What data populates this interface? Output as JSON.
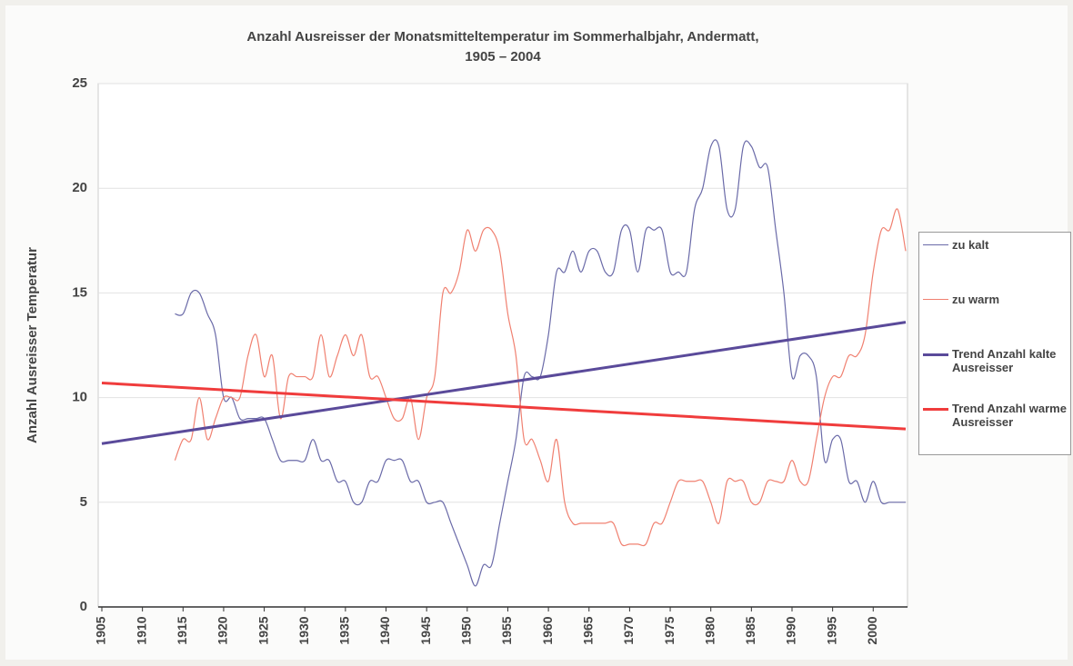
{
  "chart_data": {
    "type": "line",
    "title": "Anzahl Ausreisser der Monatsmitteltemperatur im Sommerhalbjahr, Andermatt,\n1905 – 2004",
    "y_label": "Anzahl Ausreisser Temperatur",
    "x": [
      1914,
      1915,
      1916,
      1917,
      1918,
      1919,
      1920,
      1921,
      1922,
      1923,
      1924,
      1925,
      1926,
      1927,
      1928,
      1929,
      1930,
      1931,
      1932,
      1933,
      1934,
      1935,
      1936,
      1937,
      1938,
      1939,
      1940,
      1941,
      1942,
      1943,
      1944,
      1945,
      1946,
      1947,
      1948,
      1949,
      1950,
      1951,
      1952,
      1953,
      1954,
      1955,
      1956,
      1957,
      1958,
      1959,
      1960,
      1961,
      1962,
      1963,
      1964,
      1965,
      1966,
      1967,
      1968,
      1969,
      1970,
      1971,
      1972,
      1973,
      1974,
      1975,
      1976,
      1977,
      1978,
      1979,
      1980,
      1981,
      1982,
      1983,
      1984,
      1985,
      1986,
      1987,
      1988,
      1989,
      1990,
      1991,
      1992,
      1993,
      1994,
      1995,
      1996,
      1997,
      1998,
      1999,
      2000,
      2001,
      2002,
      2003,
      2004
    ],
    "series": [
      {
        "name": "zu kalt",
        "color": "#6a6aa8",
        "width": 1.2,
        "values": [
          14,
          14,
          15,
          15,
          14,
          13,
          10,
          10,
          9,
          9,
          9,
          9,
          8,
          7,
          7,
          7,
          7,
          8,
          7,
          7,
          6,
          6,
          5,
          5,
          6,
          6,
          7,
          7,
          7,
          6,
          6,
          5,
          5,
          5,
          4,
          3,
          2,
          1,
          2,
          2,
          4,
          6,
          8,
          11,
          11,
          11,
          13,
          16,
          16,
          17,
          16,
          17,
          17,
          16,
          16,
          18,
          18,
          16,
          18,
          18,
          18,
          16,
          16,
          16,
          19,
          20,
          22,
          22,
          19,
          19,
          22,
          22,
          21,
          21,
          18,
          15,
          11,
          12,
          12,
          11,
          7,
          8,
          8,
          6,
          6,
          5,
          6,
          5,
          5,
          5,
          5
        ]
      },
      {
        "name": "zu warm",
        "color": "#f08070",
        "width": 1.2,
        "values": [
          7,
          8,
          8,
          10,
          8,
          9,
          10,
          10,
          10,
          12,
          13,
          11,
          12,
          9,
          11,
          11,
          11,
          11,
          13,
          11,
          12,
          13,
          12,
          13,
          11,
          11,
          10,
          9,
          9,
          10,
          8,
          10,
          11,
          15,
          15,
          16,
          18,
          17,
          18,
          18,
          17,
          14,
          12,
          8,
          8,
          7,
          6,
          8,
          5,
          4,
          4,
          4,
          4,
          4,
          4,
          3,
          3,
          3,
          3,
          4,
          4,
          5,
          6,
          6,
          6,
          6,
          5,
          4,
          6,
          6,
          6,
          5,
          5,
          6,
          6,
          6,
          7,
          6,
          6,
          8,
          10,
          11,
          11,
          12,
          12,
          13,
          16,
          18,
          18,
          19,
          17
        ]
      },
      {
        "name": "Trend Anzahl kalte Ausreisser",
        "color": "#5a4a9a",
        "width": 3,
        "x": [
          1905,
          2004
        ],
        "values": [
          7.8,
          13.6
        ]
      },
      {
        "name": "Trend Anzahl warme Ausreisser",
        "color": "#f03c3c",
        "width": 3,
        "x": [
          1905,
          2004
        ],
        "values": [
          10.7,
          8.5
        ]
      }
    ],
    "xlim": [
      1905,
      2004
    ],
    "xticks": [
      1905,
      1910,
      1915,
      1920,
      1925,
      1930,
      1935,
      1940,
      1945,
      1950,
      1955,
      1960,
      1965,
      1970,
      1975,
      1980,
      1985,
      1990,
      1995,
      2000
    ],
    "ylim": [
      0,
      25
    ],
    "yticks": [
      0,
      5,
      10,
      15,
      20,
      25
    ],
    "grid": true,
    "legend": "right"
  }
}
